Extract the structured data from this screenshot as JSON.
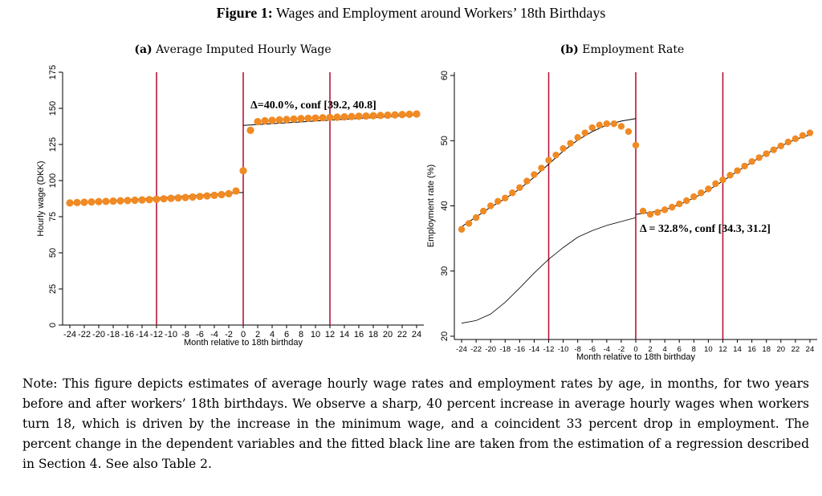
{
  "figure": {
    "label": "Figure 1:",
    "title": "Wages and Employment around Workers’ 18th Birthdays"
  },
  "panels": [
    {
      "label": "(a)",
      "title": "Average Imputed Hourly Wage"
    },
    {
      "label": "(b)",
      "title": "Employment Rate"
    }
  ],
  "note": "Note: This figure depicts estimates of average hourly wage rates and employment rates by age, in months, for two years before and after workers’ 18th birthdays. We observe a sharp, 40 percent increase in average hourly wages when workers turn 18, which is driven by the increase in the minimum wage, and a coincident 33 percent drop in employment. The percent change in the dependent variables and the fitted black line are taken from the estimation of a regression described in Section 4. See also Table 2.",
  "colors": {
    "dots": "#f08a24",
    "vlines": "#b5173b",
    "fit": "#000000"
  },
  "chart_data": [
    {
      "type": "scatter",
      "title": "Average Imputed Hourly Wage",
      "xlabel": "Month relative to 18th birthday",
      "ylabel": "Hourly wage (DKK)",
      "xlim": [
        -25,
        25
      ],
      "ylim": [
        0,
        175
      ],
      "yticks": [
        0,
        25,
        50,
        75,
        100,
        125,
        150,
        175
      ],
      "xticks": [
        -24,
        -22,
        -20,
        -18,
        -16,
        -14,
        -12,
        -10,
        -8,
        -6,
        -4,
        -2,
        0,
        2,
        4,
        6,
        8,
        10,
        12,
        14,
        16,
        18,
        20,
        22,
        24
      ],
      "vlines": [
        -12,
        0,
        12
      ],
      "annotation": "Δ=40.0%, conf [39.2, 40.8]",
      "x": [
        -24,
        -23,
        -22,
        -21,
        -20,
        -19,
        -18,
        -17,
        -16,
        -15,
        -14,
        -13,
        -12,
        -11,
        -10,
        -9,
        -8,
        -7,
        -6,
        -5,
        -4,
        -3,
        -2,
        -1,
        0,
        1,
        2,
        3,
        4,
        5,
        6,
        7,
        8,
        9,
        10,
        11,
        12,
        13,
        14,
        15,
        16,
        17,
        18,
        19,
        20,
        21,
        22,
        23,
        24
      ],
      "y": [
        84.5,
        84.8,
        85.0,
        85.2,
        85.4,
        85.6,
        85.8,
        86.0,
        86.2,
        86.4,
        86.6,
        86.8,
        87.1,
        87.4,
        87.7,
        88.0,
        88.3,
        88.6,
        89.0,
        89.4,
        89.8,
        90.3,
        90.9,
        92.8,
        106.8,
        134.8,
        140.8,
        141.4,
        141.7,
        142.0,
        142.3,
        142.6,
        142.9,
        143.1,
        143.3,
        143.5,
        143.7,
        143.9,
        144.1,
        144.3,
        144.5,
        144.7,
        144.9,
        145.1,
        145.3,
        145.5,
        145.7,
        145.9,
        146.1
      ],
      "fit": {
        "pre": {
          "x": [
            -24,
            0
          ],
          "y": [
            84.2,
            91.8
          ]
        },
        "post": {
          "x": [
            0,
            24
          ],
          "y": [
            138.2,
            145.4
          ]
        }
      }
    },
    {
      "type": "scatter",
      "title": "Employment Rate",
      "xlabel": "Month relative to 18th birthday",
      "ylabel": "Employment rate (%)",
      "xlim": [
        -25,
        25
      ],
      "ylim": [
        19.5,
        60.5
      ],
      "yticks": [
        20,
        30,
        40,
        50,
        60
      ],
      "xticks": [
        -24,
        -22,
        -20,
        -18,
        -16,
        -14,
        -12,
        -10,
        -8,
        -6,
        -4,
        -2,
        0,
        2,
        4,
        6,
        8,
        10,
        12,
        14,
        16,
        18,
        20,
        22,
        24
      ],
      "vlines": [
        -12,
        0,
        12
      ],
      "annotation": "Δ = 32.8%, conf [34.3, 31.2]",
      "x": [
        -24,
        -23,
        -22,
        -21,
        -20,
        -19,
        -18,
        -17,
        -16,
        -15,
        -14,
        -13,
        -12,
        -11,
        -10,
        -9,
        -8,
        -7,
        -6,
        -5,
        -4,
        -3,
        -2,
        -1,
        0,
        1,
        2,
        3,
        4,
        5,
        6,
        7,
        8,
        9,
        10,
        11,
        12,
        13,
        14,
        15,
        16,
        17,
        18,
        19,
        20,
        21,
        22,
        23,
        24
      ],
      "y": [
        36.4,
        37.3,
        38.2,
        39.2,
        40.0,
        40.7,
        41.2,
        42.0,
        42.8,
        43.8,
        44.8,
        45.8,
        47.0,
        47.8,
        48.8,
        49.6,
        50.5,
        51.2,
        52.0,
        52.4,
        52.6,
        52.6,
        52.2,
        51.4,
        49.3,
        39.2,
        38.7,
        39.0,
        39.4,
        39.8,
        40.3,
        40.8,
        41.4,
        42.0,
        42.6,
        43.4,
        44.0,
        44.7,
        45.4,
        46.1,
        46.8,
        47.4,
        48.0,
        48.6,
        49.2,
        49.8,
        50.3,
        50.8,
        51.2
      ],
      "fit": {
        "pre": {
          "x": [
            -24,
            -22,
            -20,
            -18,
            -16,
            -14,
            -12,
            -10,
            -8,
            -6,
            -4,
            -2,
            0
          ],
          "y": [
            36.8,
            38.3,
            39.8,
            41.1,
            42.6,
            44.4,
            46.4,
            48.4,
            50.1,
            51.4,
            52.4,
            53.0,
            53.4
          ]
        },
        "post": {
          "x": [
            0,
            2,
            4,
            6,
            8,
            10,
            12,
            14,
            16,
            18,
            20,
            22,
            24
          ],
          "y": [
            38.7,
            39.0,
            39.4,
            40.2,
            41.2,
            42.4,
            43.8,
            45.3,
            46.7,
            48.0,
            49.2,
            50.2,
            50.9
          ]
        },
        "counterfactual": {
          "x": [
            -24,
            -22,
            -20,
            -18,
            -16,
            -14,
            -12,
            -10,
            -8,
            -6,
            -4,
            -2,
            0
          ],
          "y": [
            22.0,
            22.4,
            23.4,
            25.2,
            27.4,
            29.7,
            31.8,
            33.6,
            35.2,
            36.2,
            37.0,
            37.6,
            38.2
          ]
        }
      }
    }
  ]
}
